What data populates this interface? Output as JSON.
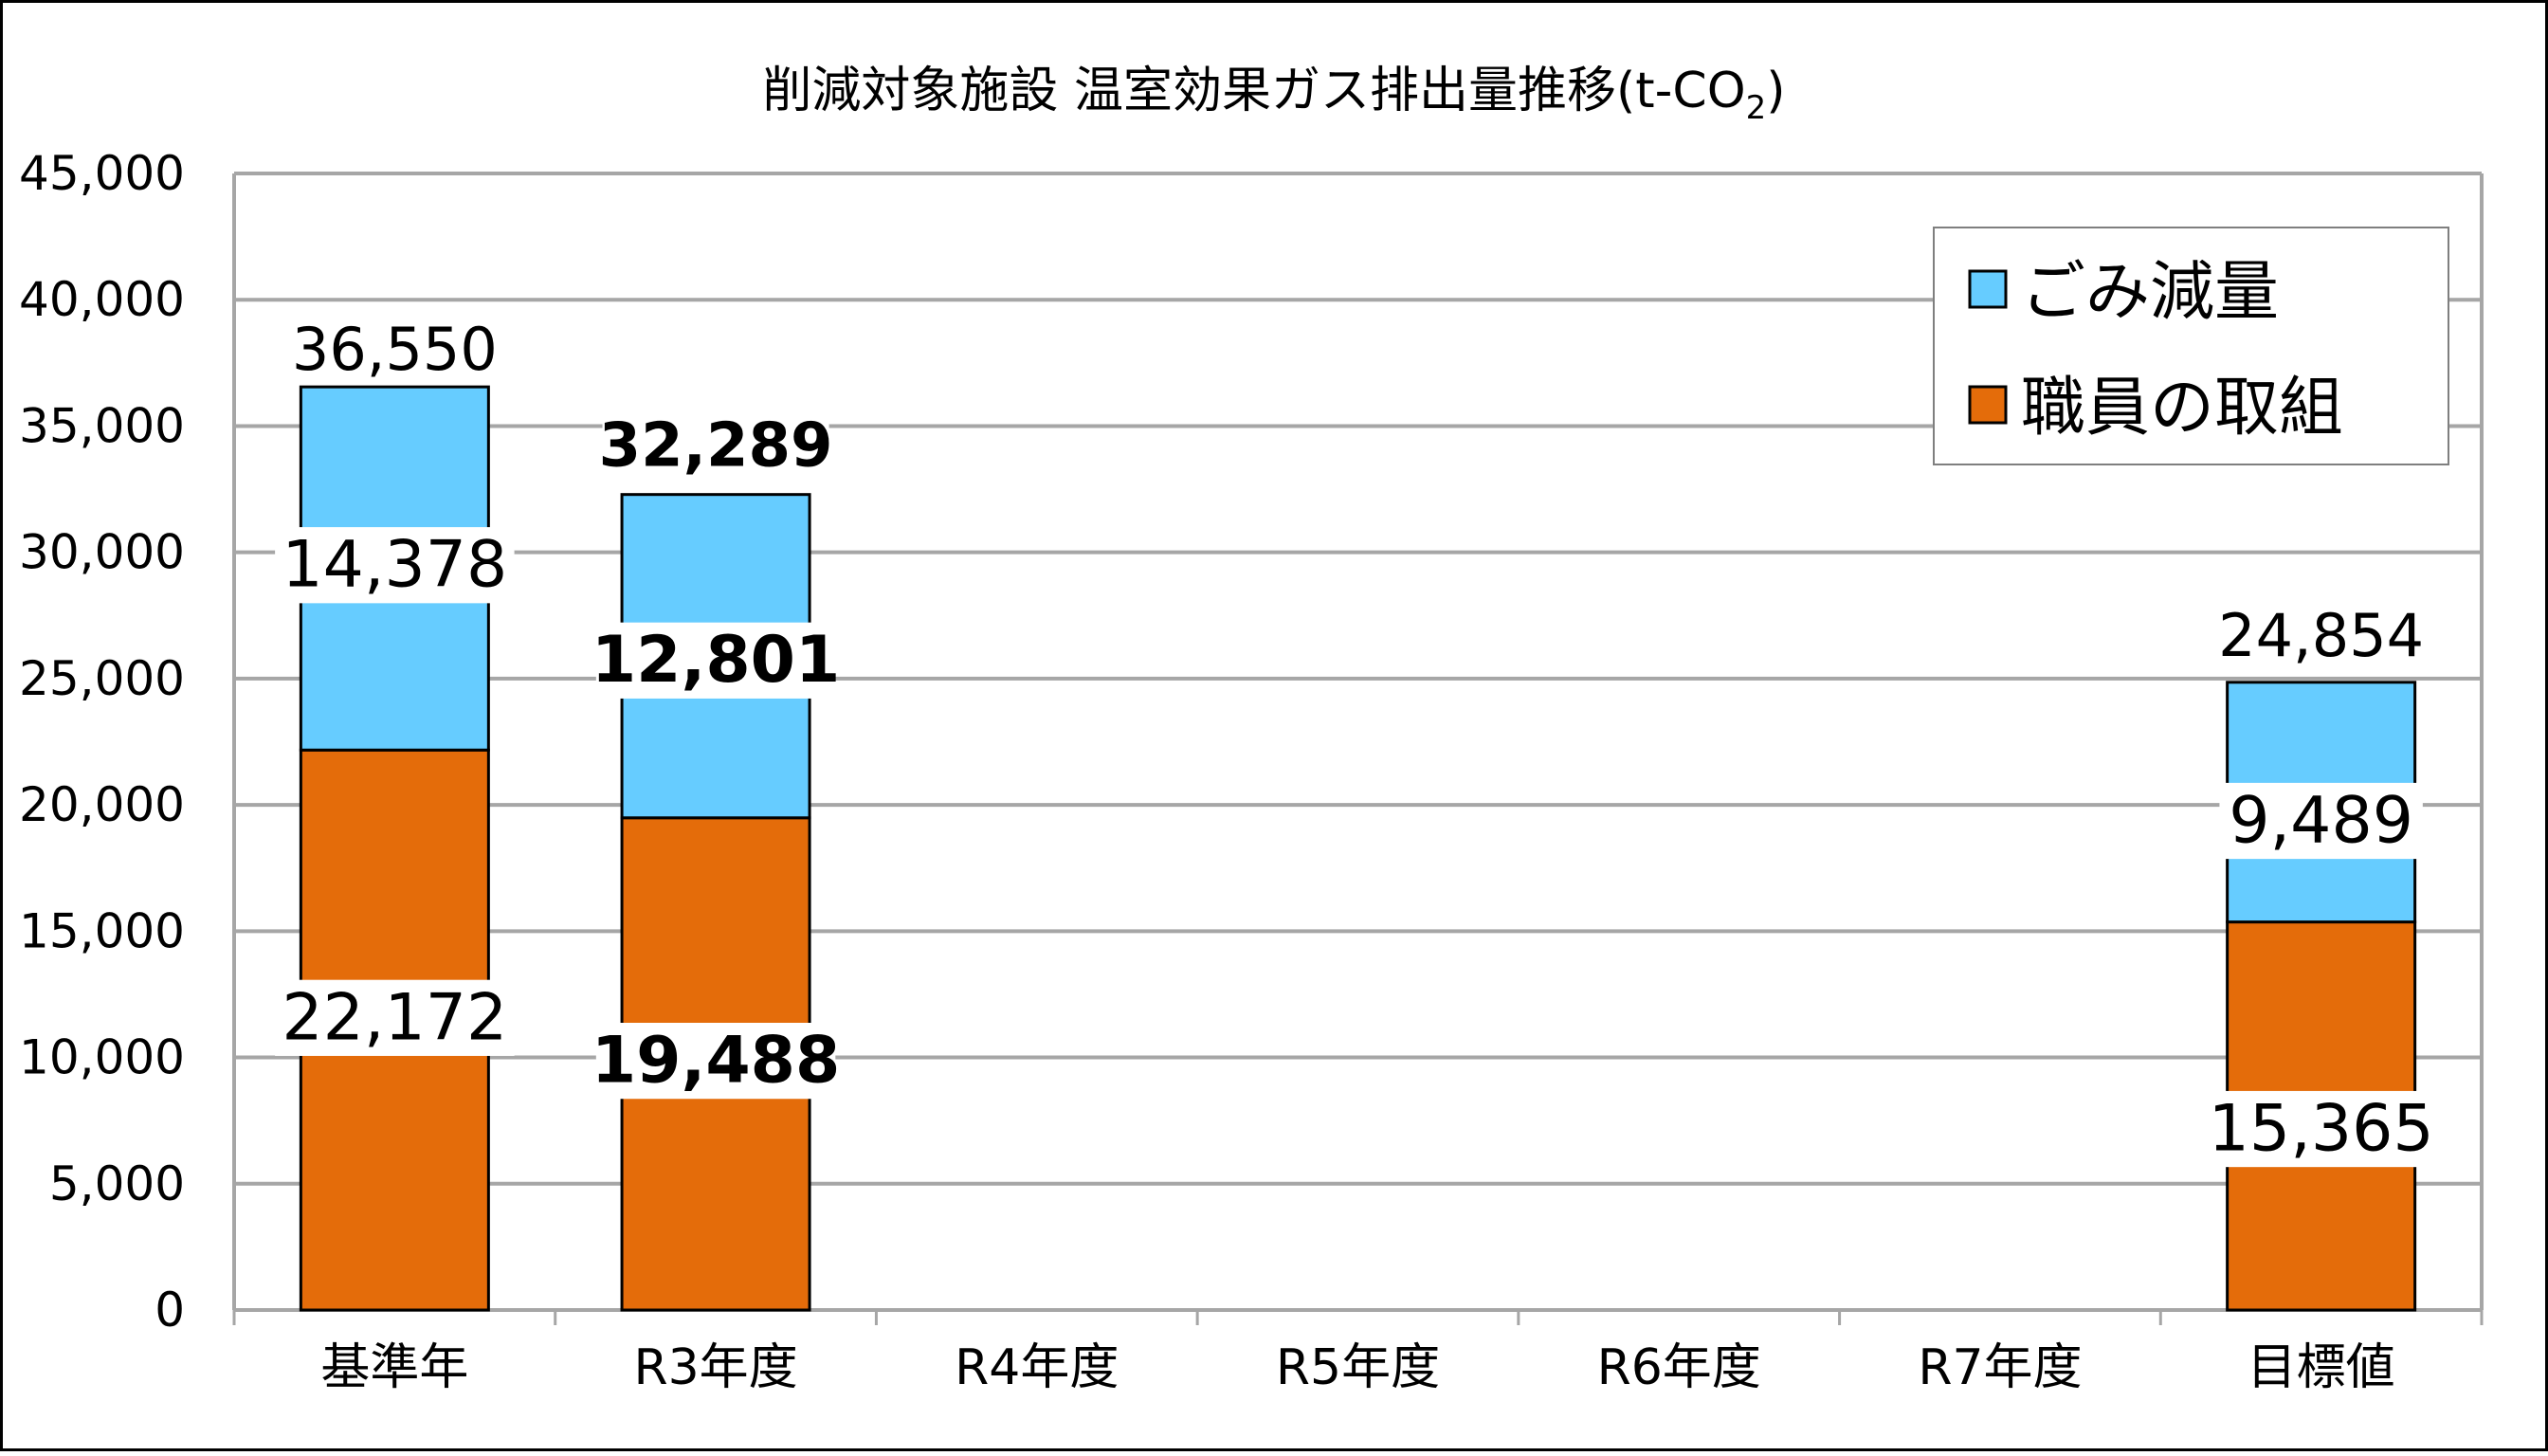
{
  "colors": {
    "gomi": "#66CCFF",
    "shokuin": "#E46C0A",
    "grid": "#A6A6A6",
    "frame": "#000000",
    "plot_border": "#A6A6A6",
    "text": "#000000"
  },
  "chart_data": {
    "type": "bar",
    "stacked": true,
    "title_main": "削減対象施設 温室効果ガス排出量推移(t-CO",
    "title_sub": "2",
    "title_end": ")",
    "categories": [
      "基準年",
      "R3年度",
      "R4年度",
      "R5年度",
      "R6年度",
      "R7年度",
      "目標値"
    ],
    "series": [
      {
        "name": "職員の取組",
        "color_key": "shokuin",
        "values": [
          22172,
          19488,
          null,
          null,
          null,
          null,
          15365
        ]
      },
      {
        "name": "ごみ減量",
        "color_key": "gomi",
        "values": [
          14378,
          12801,
          null,
          null,
          null,
          null,
          9489
        ]
      }
    ],
    "totals": [
      36550,
      32289,
      null,
      null,
      null,
      null,
      24854
    ],
    "data_labels": {
      "shokuin": [
        "22,172",
        "19,488",
        "",
        "",
        "",
        "",
        "15,365"
      ],
      "gomi": [
        "14,378",
        "12,801",
        "",
        "",
        "",
        "",
        "9,489"
      ],
      "totals": [
        "36,550",
        "32,289",
        "",
        "",
        "",
        "",
        "24,854"
      ]
    },
    "y_ticks": [
      "0",
      "5,000",
      "10,000",
      "15,000",
      "20,000",
      "25,000",
      "30,000",
      "35,000",
      "40,000",
      "45,000"
    ],
    "ylim": [
      0,
      45000
    ],
    "y_step": 5000,
    "grid": true,
    "legend_position": "top-right",
    "legend_order": [
      "ごみ減量",
      "職員の取組"
    ]
  }
}
